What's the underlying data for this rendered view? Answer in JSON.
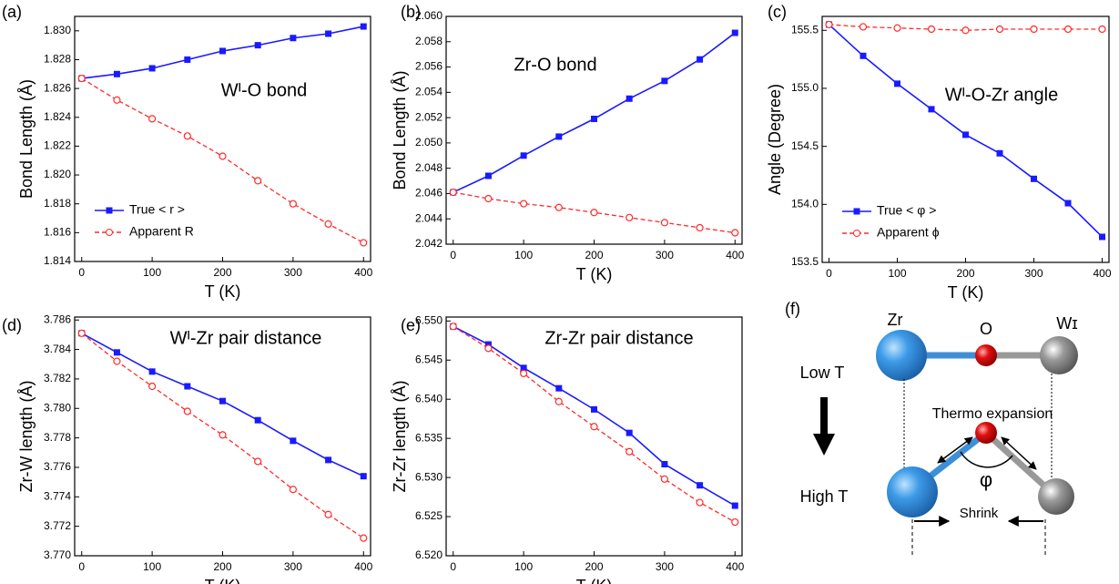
{
  "chart_data": [
    {
      "type": "line",
      "panel": "(a)",
      "annotation": "Wᴵ-O bond",
      "x_label": "T (K)",
      "y_label": "Bond Length (Å)",
      "x": [
        0,
        50,
        100,
        150,
        200,
        250,
        300,
        350,
        400
      ],
      "xlim": [
        -10,
        410
      ],
      "xticks": [
        0,
        100,
        200,
        300,
        400
      ],
      "ylim": [
        1.814,
        1.831
      ],
      "yticks": [
        1.814,
        1.816,
        1.818,
        {
          "value": 1.82,
          "label": "1.820"
        },
        1.822,
        1.824,
        1.826,
        1.828,
        {
          "value": 1.83,
          "label": "1.830"
        }
      ],
      "legend": "lower left",
      "series": [
        {
          "name": "True < r >",
          "color": "#1a1aff",
          "values": [
            1.8267,
            1.827,
            1.8274,
            1.828,
            1.8286,
            1.829,
            1.8295,
            1.8298,
            1.8303
          ]
        },
        {
          "name": "Apparent R",
          "color": "#ff2a2a",
          "values": [
            1.8267,
            1.8252,
            1.8239,
            1.8227,
            1.8213,
            1.8196,
            1.818,
            1.8166,
            1.8153
          ]
        }
      ]
    },
    {
      "type": "line",
      "panel": "(b)",
      "annotation": "Zr-O bond",
      "x_label": "T (K)",
      "y_label": "Bond Length (Å)",
      "x": [
        0,
        50,
        100,
        150,
        200,
        250,
        300,
        350,
        400
      ],
      "xlim": [
        -10,
        410
      ],
      "xticks": [
        0,
        100,
        200,
        300,
        400
      ],
      "ylim": [
        2.042,
        2.06
      ],
      "yticks": [
        2.042,
        2.044,
        2.046,
        2.048,
        {
          "value": 2.05,
          "label": "2.050"
        },
        2.052,
        2.054,
        2.056,
        2.058,
        {
          "value": 2.06,
          "label": "2.060"
        }
      ],
      "series": [
        {
          "color": "#1a1aff",
          "values": [
            2.0461,
            2.0474,
            2.049,
            2.0505,
            2.0519,
            2.0535,
            2.0549,
            2.0566,
            2.0587
          ]
        },
        {
          "color": "#ff2a2a",
          "values": [
            2.0461,
            2.0456,
            2.0452,
            2.0449,
            2.0445,
            2.0441,
            2.0437,
            2.0433,
            2.0429
          ]
        }
      ]
    },
    {
      "type": "line",
      "panel": "(c)",
      "annotation": "Wᴵ-O-Zr angle",
      "x_label": "T (K)",
      "y_label": "Angle (Degree)",
      "x": [
        0,
        50,
        100,
        150,
        200,
        250,
        300,
        350,
        400
      ],
      "xlim": [
        -10,
        410
      ],
      "xticks": [
        0,
        100,
        200,
        300,
        400
      ],
      "ylim": [
        153.5,
        155.62
      ],
      "yticks": [
        153.5,
        {
          "value": 154,
          "label": "154.0"
        },
        154.5,
        {
          "value": 155,
          "label": "155.0"
        },
        155.5
      ],
      "legend": "lower left",
      "series": [
        {
          "name": "True < φ >",
          "color": "#1a1aff",
          "values": [
            155.55,
            155.28,
            155.04,
            154.82,
            154.6,
            154.44,
            154.22,
            154.01,
            153.72
          ]
        },
        {
          "name": "Apparent ϕ",
          "color": "#ff2a2a",
          "values": [
            155.55,
            155.53,
            155.52,
            155.51,
            155.5,
            155.51,
            155.51,
            155.51,
            155.51
          ]
        }
      ]
    },
    {
      "type": "line",
      "panel": "(d)",
      "annotation": "Wᴵ-Zr pair distance",
      "x_label": "T (K)",
      "y_label": "Zr-W length (Å)",
      "x": [
        0,
        50,
        100,
        150,
        200,
        250,
        300,
        350,
        400
      ],
      "xlim": [
        -10,
        410
      ],
      "xticks": [
        0,
        100,
        200,
        300,
        400
      ],
      "ylim": [
        3.77,
        3.7862
      ],
      "yticks": [
        {
          "value": 3.77,
          "label": "3.770"
        },
        3.772,
        3.774,
        3.776,
        3.778,
        {
          "value": 3.78,
          "label": "3.780"
        },
        3.782,
        3.784,
        3.786
      ],
      "series": [
        {
          "color": "#1a1aff",
          "values": [
            3.7851,
            3.7838,
            3.7825,
            3.7815,
            3.7805,
            3.7792,
            3.7778,
            3.7765,
            3.7754
          ]
        },
        {
          "color": "#ff2a2a",
          "values": [
            3.7851,
            3.7832,
            3.7815,
            3.7798,
            3.7782,
            3.7764,
            3.7745,
            3.7728,
            3.7712
          ]
        }
      ]
    },
    {
      "type": "line",
      "panel": "(e)",
      "annotation": "Zr-Zr pair distance",
      "x_label": "T (K)",
      "y_label": "Zr-Zr length (Å)",
      "x": [
        0,
        50,
        100,
        150,
        200,
        250,
        300,
        350,
        400
      ],
      "xlim": [
        -10,
        410
      ],
      "xticks": [
        0,
        100,
        200,
        300,
        400
      ],
      "ylim": [
        6.52,
        6.5505
      ],
      "yticks": [
        {
          "value": 6.52,
          "label": "6.520"
        },
        6.525,
        {
          "value": 6.53,
          "label": "6.530"
        },
        6.535,
        {
          "value": 6.54,
          "label": "6.540"
        },
        6.545,
        {
          "value": 6.55,
          "label": "6.550"
        }
      ],
      "series": [
        {
          "color": "#1a1aff",
          "values": [
            6.5493,
            6.547,
            6.544,
            6.5414,
            6.5387,
            6.5357,
            6.5317,
            6.529,
            6.5264
          ]
        },
        {
          "color": "#ff2a2a",
          "values": [
            6.5493,
            6.5465,
            6.5433,
            6.5397,
            6.5365,
            6.5333,
            6.5298,
            6.5268,
            6.5243
          ]
        }
      ]
    }
  ],
  "diagram": {
    "panel": "(f)",
    "zr": "Zr",
    "o": "O",
    "w": "Wɪ",
    "low": "Low T",
    "high": "High T",
    "expansion": "Thermo expansion",
    "angle": "φ",
    "shrink": "Shrink"
  }
}
